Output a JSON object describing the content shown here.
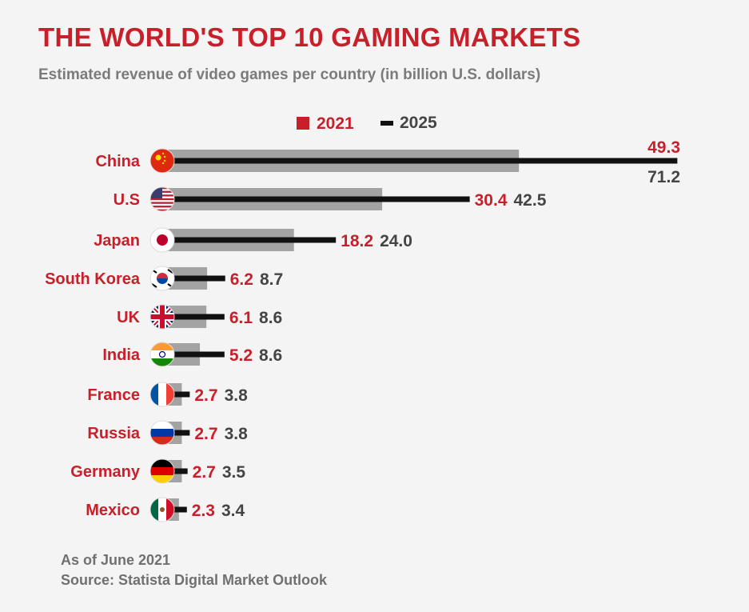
{
  "title": "THE WORLD'S TOP 10 GAMING MARKETS",
  "subtitle": "Estimated revenue of video games per country (in billion U.S. dollars)",
  "legend": {
    "label_2021": "2021",
    "label_2025": "2025"
  },
  "footer": {
    "note": "As of June 2021",
    "source": "Source: Statista Digital Market Outlook"
  },
  "colors": {
    "accent_red": "#c8202a",
    "bar_2021": "#a3a3a3",
    "line_2025": "#111111",
    "text_dark": "#444444",
    "background": "#f4f4f4"
  },
  "chart_data": {
    "type": "bar",
    "orientation": "horizontal",
    "categories": [
      "China",
      "U.S",
      "Japan",
      "South Korea",
      "UK",
      "India",
      "France",
      "Russia",
      "Germany",
      "Mexico"
    ],
    "flag_icons": [
      "china-flag-icon",
      "us-flag-icon",
      "japan-flag-icon",
      "south-korea-flag-icon",
      "uk-flag-icon",
      "india-flag-icon",
      "france-flag-icon",
      "russia-flag-icon",
      "germany-flag-icon",
      "mexico-flag-icon"
    ],
    "series": [
      {
        "name": "2021",
        "values": [
          49.3,
          30.4,
          18.2,
          6.2,
          6.1,
          5.2,
          2.7,
          2.7,
          2.7,
          2.3
        ],
        "value_labels": [
          "49.3",
          "30.4",
          "18.2",
          "6.2",
          "6.1",
          "5.2",
          "2.7",
          "2.7",
          "2.7",
          "2.3"
        ]
      },
      {
        "name": "2025",
        "values": [
          71.2,
          42.5,
          24.0,
          8.7,
          8.6,
          8.6,
          3.8,
          3.8,
          3.5,
          3.4
        ],
        "value_labels": [
          "71.2",
          "42.5",
          "24.0",
          "8.7",
          "8.6",
          "8.6",
          "3.8",
          "3.8",
          "3.5",
          "3.4"
        ]
      }
    ],
    "grid": false,
    "legend_position": "top-center"
  }
}
